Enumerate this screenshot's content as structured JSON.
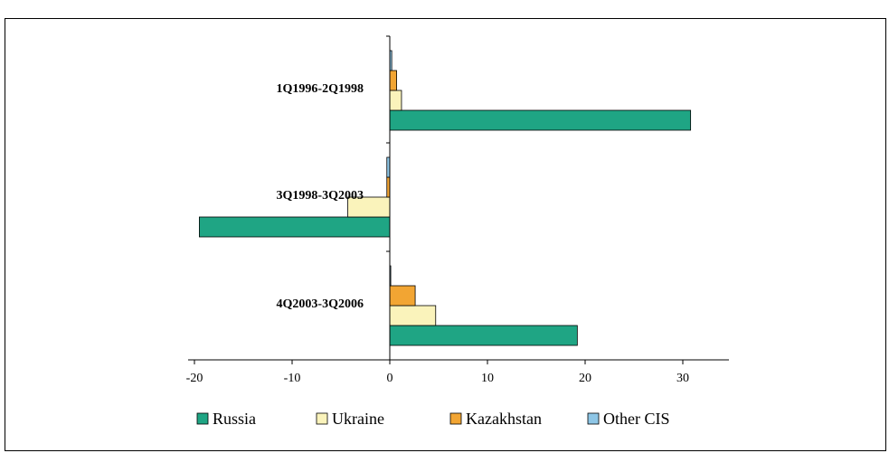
{
  "caption_fragment": "",
  "colors": {
    "Russia": "#1fa584",
    "Ukraine": "#faf3bb",
    "Kazakhstan": "#f2a533",
    "Other CIS": "#8ec6e6"
  },
  "chart_data": {
    "type": "bar",
    "orientation": "horizontal",
    "categories": [
      "1Q1996-2Q1998",
      "3Q1998-3Q2003",
      "4Q2003-3Q2006"
    ],
    "series": [
      {
        "name": "Russia",
        "values": [
          30.8,
          -19.5,
          19.2
        ]
      },
      {
        "name": "Ukraine",
        "values": [
          1.2,
          -4.3,
          4.7
        ]
      },
      {
        "name": "Kazakhstan",
        "values": [
          0.7,
          -0.3,
          2.6
        ]
      },
      {
        "name": "Other CIS",
        "values": [
          0.2,
          -0.3,
          0.1
        ]
      }
    ],
    "xlim": [
      -20,
      35
    ],
    "xticks": [
      "-20",
      "-10",
      "0",
      "10",
      "20",
      "30"
    ],
    "xtick_values": [
      -20,
      -10,
      0,
      10,
      20,
      30
    ],
    "legend": [
      "Russia",
      "Ukraine",
      "Kazakhstan",
      "Other CIS"
    ],
    "legend_position": "bottom",
    "grid": false
  }
}
